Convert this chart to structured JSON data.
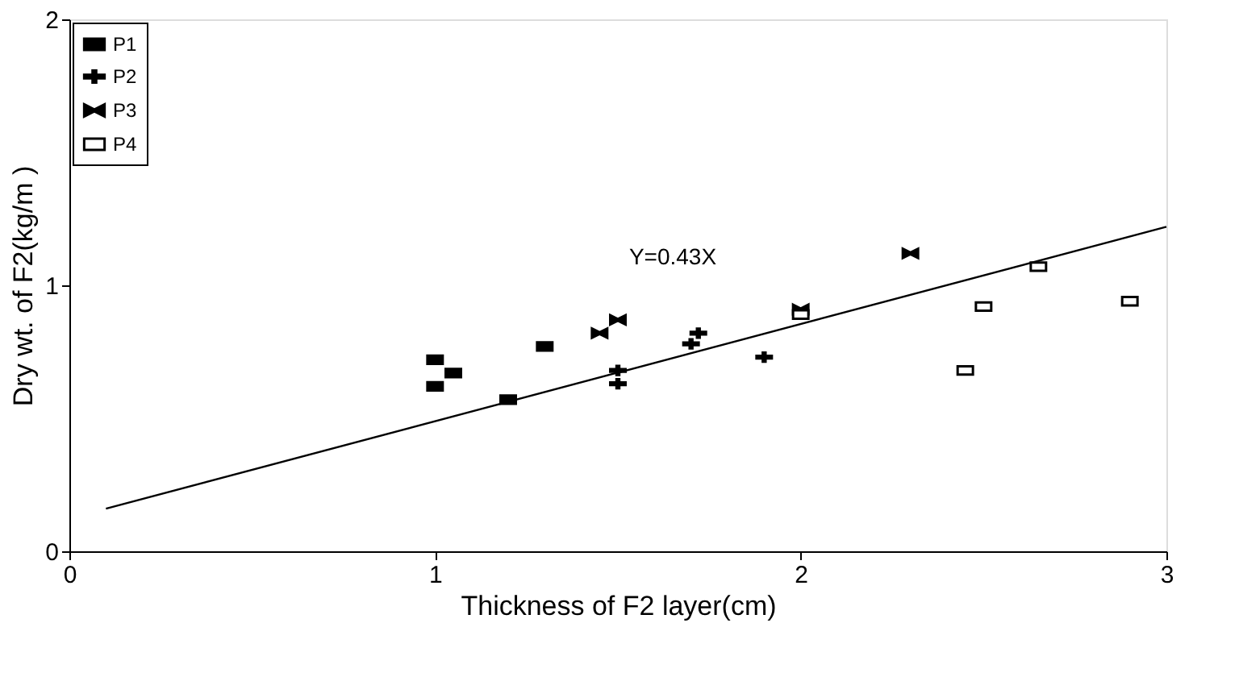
{
  "chart_data": {
    "type": "scatter",
    "xlabel": "Thickness of F2 layer(cm)",
    "ylabel": "Dry wt. of F2(kg/m )",
    "xlim": [
      0,
      3
    ],
    "ylim": [
      0,
      2
    ],
    "xticks": [
      0,
      1,
      2,
      3
    ],
    "yticks": [
      0,
      1,
      2
    ],
    "grid": false,
    "legend": "top left",
    "series": [
      {
        "name": "P1",
        "color": "#000000",
        "marker": "square",
        "x": [
          1.0,
          1.0,
          1.05,
          1.2,
          1.3
        ],
        "values": [
          0.72,
          0.62,
          0.67,
          0.57,
          0.77
        ]
      },
      {
        "name": "P2",
        "color": "#000000",
        "marker": "cross",
        "x": [
          1.5,
          1.5,
          1.7,
          1.72,
          1.9
        ],
        "values": [
          0.68,
          0.63,
          0.78,
          0.82,
          0.73
        ]
      },
      {
        "name": "P3",
        "color": "#000000",
        "marker": "star",
        "x": [
          1.45,
          1.5,
          2.0,
          2.3
        ],
        "values": [
          0.82,
          0.87,
          0.91,
          1.12
        ]
      },
      {
        "name": "P4",
        "color": "#ffffff",
        "marker": "square",
        "x": [
          2.0,
          2.45,
          2.5,
          2.65,
          2.9
        ],
        "values": [
          0.89,
          0.68,
          0.92,
          1.07,
          0.94
        ]
      },
      {
        "type": "line",
        "color": "#000000",
        "marker": "none",
        "line_style": "solid",
        "x": [
          0.1,
          3.0
        ],
        "values": [
          0.16,
          1.22
        ]
      }
    ],
    "annotations": [
      "Y=0.43X"
    ]
  }
}
